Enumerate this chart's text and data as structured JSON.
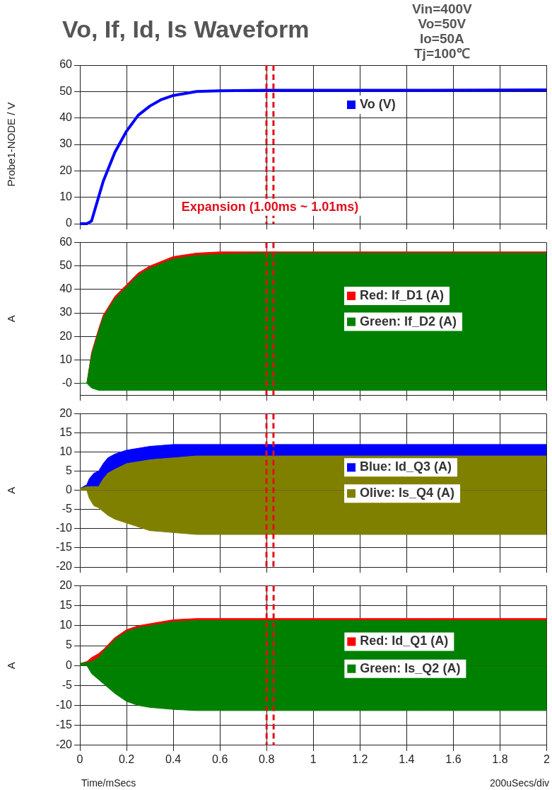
{
  "chart_data": [
    {
      "type": "line",
      "title": "Vo, If, Id, Is  Waveform",
      "ylabel": "Probe1-NODE / V",
      "annotations": [
        "Vin=400V",
        "Vo=50V",
        "Io=50A",
        "Tj=100℃",
        {
          "text": "Expansion (1.00ms ~ 1.01ms)",
          "x": 0.815,
          "y": 3
        }
      ],
      "x": [
        0,
        0.03,
        0.05,
        0.08,
        0.1,
        0.15,
        0.2,
        0.25,
        0.3,
        0.35,
        0.4,
        0.5,
        0.6,
        0.8,
        1.0,
        1.5,
        2.0
      ],
      "series": [
        {
          "name": "Vo (V)",
          "color": "#0000ff",
          "values": [
            0,
            0,
            1,
            10,
            16,
            27,
            35,
            41,
            44.5,
            47,
            48.5,
            50,
            50.3,
            50.5,
            50.5,
            50.5,
            50.6
          ]
        }
      ],
      "xlim": [
        0,
        2
      ],
      "xticks": [
        0,
        0.2,
        0.4,
        0.6,
        0.8,
        1,
        1.2,
        1.4,
        1.6,
        1.8,
        2
      ],
      "ylim": [
        0,
        60
      ],
      "yticks": [
        0,
        10,
        20,
        30,
        40,
        50,
        60
      ],
      "ref_lines": [
        {
          "axis": "x",
          "value": 0.8,
          "color": "#e0101c",
          "line_style": "dashed"
        },
        {
          "axis": "x",
          "value": 0.83,
          "color": "#e0101c",
          "line_style": "dashed"
        }
      ],
      "grid": true,
      "legend": "right",
      "tick_labels": "y"
    },
    {
      "type": "area",
      "ylabel": "A",
      "x": [
        0,
        0.03,
        0.05,
        0.08,
        0.1,
        0.15,
        0.2,
        0.25,
        0.3,
        0.4,
        0.5,
        0.6,
        0.8,
        1.0,
        1.5,
        2.0
      ],
      "series": [
        {
          "name": "Red: If_D1 (A)",
          "color": "#ff0000",
          "values": [
            0,
            0,
            13,
            23,
            29,
            37,
            42,
            47,
            50,
            54,
            55.5,
            56,
            56,
            56,
            56,
            56
          ]
        },
        {
          "name": "Green: If_D2 (A)",
          "color": "#008000",
          "values": [
            0,
            0,
            12,
            22,
            28,
            36,
            41,
            46,
            49,
            53,
            54.5,
            55,
            55.5,
            55.5,
            55.5,
            55.5
          ]
        },
        {
          "color": "#008000",
          "values": [
            0,
            0,
            -2,
            -3,
            -3,
            -3,
            -3,
            -3,
            -3,
            -3,
            -3,
            -3,
            -3,
            -3,
            -3,
            -3
          ]
        }
      ],
      "xlim": [
        0,
        2
      ],
      "xticks": [
        0,
        0.2,
        0.4,
        0.6,
        0.8,
        1,
        1.2,
        1.4,
        1.6,
        1.8,
        2
      ],
      "ylim": [
        -5,
        60
      ],
      "yticks": [
        {
          "value": 0,
          "label": "-0"
        },
        10,
        20,
        30,
        40,
        50,
        60
      ],
      "ref_lines": [
        {
          "axis": "x",
          "value": 0.8,
          "color": "#e0101c",
          "line_style": "dashed"
        },
        {
          "axis": "x",
          "value": 0.83,
          "color": "#e0101c",
          "line_style": "dashed"
        }
      ],
      "grid": true,
      "legend": "right",
      "tick_labels": "y"
    },
    {
      "type": "area",
      "ylabel": "A",
      "x": [
        0,
        0.03,
        0.04,
        0.06,
        0.08,
        0.1,
        0.12,
        0.15,
        0.2,
        0.3,
        0.4,
        0.5,
        0.6,
        0.8,
        1.0,
        1.5,
        2.0
      ],
      "series": [
        {
          "name": "Blue: Id_Q3 (A)",
          "color": "#0000ff",
          "values": [
            0.5,
            1.5,
            3,
            4.5,
            5,
            7,
            8.5,
            9.5,
            10.5,
            11.5,
            12,
            12,
            12,
            12,
            12,
            12,
            12
          ]
        },
        {
          "name": "Olive: Is_Q4 (A)",
          "color": "#808000",
          "values": [
            0.5,
            1,
            1,
            1,
            1,
            3,
            4.5,
            5.5,
            7,
            8,
            8.5,
            9,
            9,
            9,
            9,
            9,
            9
          ]
        },
        {
          "color": "#808000",
          "values": [
            0,
            0,
            -2,
            -4,
            -4.5,
            -5.5,
            -6.5,
            -7.5,
            -8.5,
            -10.5,
            -11,
            -11.5,
            -11.5,
            -11.5,
            -11.5,
            -11.5,
            -11.5
          ]
        }
      ],
      "xlim": [
        0,
        2
      ],
      "xticks": [
        0,
        0.2,
        0.4,
        0.6,
        0.8,
        1,
        1.2,
        1.4,
        1.6,
        1.8,
        2
      ],
      "ylim": [
        -20,
        20
      ],
      "yticks": [
        -20,
        -15,
        -10,
        -5,
        0,
        5,
        10,
        15,
        20
      ],
      "ref_lines": [
        {
          "axis": "x",
          "value": 0.8,
          "color": "#e0101c",
          "line_style": "dashed"
        },
        {
          "axis": "x",
          "value": 0.83,
          "color": "#e0101c",
          "line_style": "dashed"
        }
      ],
      "grid": true,
      "legend": "right",
      "tick_labels": "y"
    },
    {
      "type": "area",
      "ylabel": "A",
      "xlabel": "Time/mSecs",
      "annotations": [
        "200uSecs/div"
      ],
      "x": [
        0,
        0.03,
        0.05,
        0.08,
        0.1,
        0.15,
        0.2,
        0.25,
        0.3,
        0.4,
        0.5,
        0.6,
        0.8,
        1.0,
        1.5,
        2.0
      ],
      "series": [
        {
          "name": "Red: Id_Q1 (A)",
          "color": "#ff0000",
          "values": [
            0.5,
            1,
            2,
            3,
            4,
            7,
            9,
            10,
            10.5,
            11.5,
            11.8,
            11.8,
            11.8,
            11.8,
            11.8,
            11.8
          ]
        },
        {
          "name": "Green: Is_Q2 (A)",
          "color": "#008000",
          "values": [
            0.5,
            0.8,
            1,
            2,
            3.5,
            6.5,
            8.5,
            9.5,
            10,
            11,
            11.3,
            11.3,
            11.3,
            11.3,
            11.3,
            11.3
          ]
        },
        {
          "color": "#008000",
          "values": [
            0,
            0,
            -2,
            -3.5,
            -4.5,
            -7,
            -9,
            -10,
            -10.5,
            -11,
            -11.3,
            -11.3,
            -11.3,
            -11.3,
            -11.3,
            -11.3
          ]
        }
      ],
      "xlim": [
        0,
        2
      ],
      "xticks": [
        0,
        0.2,
        0.4,
        0.6,
        0.8,
        1,
        1.2,
        1.4,
        1.6,
        1.8,
        2
      ],
      "ylim": [
        -20,
        20
      ],
      "yticks": [
        -20,
        -15,
        -10,
        -5,
        0,
        5,
        10,
        15,
        20
      ],
      "ref_lines": [
        {
          "axis": "x",
          "value": 0.8,
          "color": "#e0101c",
          "line_style": "dashed"
        },
        {
          "axis": "x",
          "value": 0.83,
          "color": "#e0101c",
          "line_style": "dashed"
        }
      ],
      "grid": true,
      "legend": "right"
    }
  ]
}
